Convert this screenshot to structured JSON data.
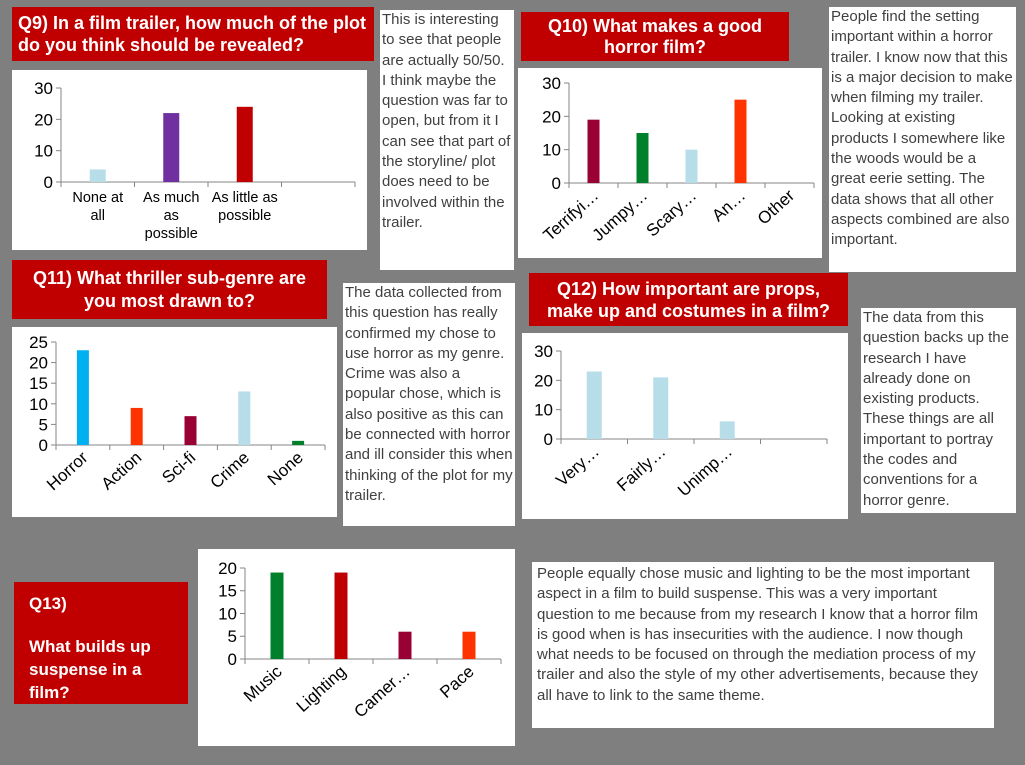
{
  "q9": {
    "title": "Q9) In a film trailer, how much of the plot do you think should be revealed?",
    "note": "This is interesting to see that people are actually 50/50. I think maybe the question was far to open, but from it I can see that part of the storyline/ plot does need to be involved within the trailer."
  },
  "q10": {
    "title": "Q10) What makes a good horror film?",
    "note": "People find the setting important within a horror trailer. I know now that this is a major decision to make when filming my trailer. Looking at existing products I somewhere like the woods would be a great eerie setting. The data shows that all other aspects combined are also important."
  },
  "q11": {
    "title": "Q11) What thriller sub-genre are you most drawn to?",
    "note": "The data collected from this question has really confirmed my chose to use horror as my genre. Crime was also a popular chose, which is also positive as this can be connected with horror and ill consider this when thinking of the plot for my trailer."
  },
  "q12": {
    "title": "Q12) How important are props, make up and costumes in a film?",
    "note": "The data from this question backs up the research I have already done on existing products. These things are all important to portray the codes and conventions for a horror genre."
  },
  "q13": {
    "title_line1": "Q13)",
    "title_line2": "What builds up suspense in a film?",
    "note": "People equally chose music and lighting to be the most important aspect in a film to build suspense. This was a very important question to me because from my research I know that a horror film is good when is has insecurities with the audience. I now though what needs to be focused on through the mediation process of my trailer and also the style of my other advertisements, because they all have to link to the same theme."
  },
  "chart_data": [
    {
      "id": "q9",
      "type": "bar",
      "categories": [
        "None at all",
        "As much as possible",
        "As little as possible"
      ],
      "category_lines": [
        [
          "None at",
          "all"
        ],
        [
          "As much",
          "as",
          "possible"
        ],
        [
          "As little as",
          "possible"
        ]
      ],
      "values": [
        4,
        22,
        24
      ],
      "colors": [
        "#b7dde8",
        "#7030a0",
        "#c00000"
      ],
      "ylim": [
        0,
        30
      ],
      "yticks": [
        0,
        10,
        20,
        30
      ],
      "n_slots": 4,
      "grid": false
    },
    {
      "id": "q10",
      "type": "bar",
      "categories": [
        "Terrifyi…",
        "Jumpy…",
        "Scary…",
        "An…",
        "Other"
      ],
      "values": [
        19,
        15,
        10,
        25,
        0
      ],
      "colors": [
        "#990033",
        "#00802b",
        "#b7dde8",
        "#ff3300",
        "#b7dde8"
      ],
      "ylim": [
        0,
        30
      ],
      "yticks": [
        0,
        10,
        20,
        30
      ],
      "n_slots": 5,
      "grid": false
    },
    {
      "id": "q11",
      "type": "bar",
      "categories": [
        "Horror",
        "Action",
        "Sci-fi",
        "Crime",
        "None"
      ],
      "values": [
        23,
        9,
        7,
        13,
        1
      ],
      "colors": [
        "#00b0f0",
        "#ff3300",
        "#990033",
        "#b7dde8",
        "#00802b"
      ],
      "ylim": [
        0,
        25
      ],
      "yticks": [
        0,
        5,
        10,
        15,
        20,
        25
      ],
      "n_slots": 5,
      "grid": false
    },
    {
      "id": "q12",
      "type": "bar",
      "categories": [
        "Very…",
        "Fairly…",
        "Unimp…"
      ],
      "values": [
        23,
        21,
        6
      ],
      "colors": [
        "#b7dde8",
        "#b7dde8",
        "#b7dde8"
      ],
      "ylim": [
        0,
        30
      ],
      "yticks": [
        0,
        10,
        20,
        30
      ],
      "n_slots": 4,
      "grid": false
    },
    {
      "id": "q13",
      "type": "bar",
      "categories": [
        "Music",
        "Lighting",
        "Camer…",
        "Pace"
      ],
      "values": [
        19,
        19,
        6,
        6
      ],
      "colors": [
        "#00802b",
        "#c00000",
        "#990033",
        "#ff3300"
      ],
      "ylim": [
        0,
        20
      ],
      "yticks": [
        0,
        5,
        10,
        15,
        20
      ],
      "n_slots": 4,
      "grid": false
    }
  ]
}
